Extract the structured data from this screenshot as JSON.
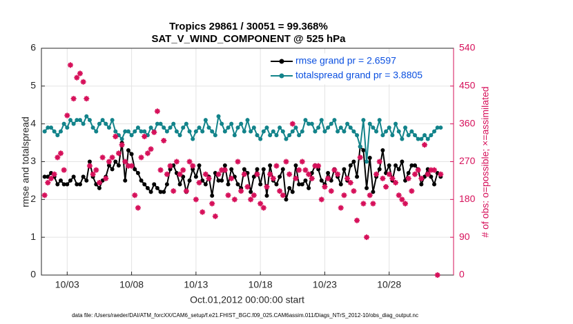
{
  "chart_data": {
    "type": "line",
    "title": "Tropics 29861 / 30051 = 99.368%",
    "subtitle": "SAT_V_WIND_COMPONENT @ 525 hPa",
    "x_label": "Oct.01,2012 00:00:00 start",
    "y_label": "rmse and totalspread",
    "y2_label": "# of obs: o=possible; ×=assimilated",
    "footnote": "data file: /Users/raeder/DAI/ATM_forcXX/CAM6_setup/f.e21.FHIST_BGC.f09_025.CAM6assim.011/Diags_NTrS_2012-10/obs_diag_output.nc",
    "xlim": [
      1,
      33
    ],
    "xticks": [
      {
        "value": 3,
        "label": "10/03"
      },
      {
        "value": 8,
        "label": "10/08"
      },
      {
        "value": 13,
        "label": "10/13"
      },
      {
        "value": 18,
        "label": "10/18"
      },
      {
        "value": 23,
        "label": "10/23"
      },
      {
        "value": 28,
        "label": "10/28"
      }
    ],
    "ylim": [
      0,
      6
    ],
    "yticks": [
      0,
      1,
      2,
      3,
      4,
      5,
      6
    ],
    "y2lim": [
      0,
      540
    ],
    "y2ticks": [
      0,
      90,
      180,
      270,
      360,
      450,
      540
    ],
    "grid": true,
    "legend": "upper right",
    "x": [
      1.25,
      1.5,
      1.75,
      2,
      2.25,
      2.5,
      2.75,
      3,
      3.25,
      3.5,
      3.75,
      4,
      4.25,
      4.5,
      4.75,
      5,
      5.25,
      5.5,
      5.75,
      6,
      6.25,
      6.5,
      6.75,
      7,
      7.25,
      7.5,
      7.75,
      8,
      8.25,
      8.5,
      8.75,
      9,
      9.25,
      9.5,
      9.75,
      10,
      10.25,
      10.5,
      10.75,
      11,
      11.25,
      11.5,
      11.75,
      12,
      12.25,
      12.5,
      12.75,
      13,
      13.25,
      13.5,
      13.75,
      14,
      14.25,
      14.5,
      14.75,
      15,
      15.25,
      15.5,
      15.75,
      16,
      16.25,
      16.5,
      16.75,
      17,
      17.25,
      17.5,
      17.75,
      18,
      18.25,
      18.5,
      18.75,
      19,
      19.25,
      19.5,
      19.75,
      20,
      20.25,
      20.5,
      20.75,
      21,
      21.25,
      21.5,
      21.75,
      22,
      22.25,
      22.5,
      22.75,
      23,
      23.25,
      23.5,
      23.75,
      24,
      24.25,
      24.5,
      24.75,
      25,
      25.25,
      25.5,
      25.75,
      26,
      26.25,
      26.5,
      26.75,
      27,
      27.25,
      27.5,
      27.75,
      28,
      28.25,
      28.5,
      28.75,
      29,
      29.25,
      29.5,
      29.75,
      30,
      30.25,
      30.5,
      30.75,
      31,
      31.25,
      31.5,
      31.75,
      32
    ],
    "series": [
      {
        "name": "rmse grand pr = 2.6597",
        "color": "#000000",
        "values": [
          2.6,
          2.6,
          2.7,
          2.6,
          2.4,
          2.5,
          2.4,
          2.4,
          2.5,
          2.6,
          2.4,
          2.4,
          2.6,
          2.5,
          3.0,
          2.6,
          2.4,
          2.3,
          2.5,
          2.6,
          2.9,
          2.8,
          3.0,
          2.9,
          3.5,
          2.5,
          3.3,
          3.2,
          2.8,
          2.7,
          2.5,
          2.4,
          2.3,
          2.2,
          2.4,
          2.3,
          2.2,
          2.2,
          2.4,
          2.8,
          2.9,
          2.7,
          2.4,
          2.6,
          2.2,
          2.5,
          2.8,
          2.6,
          2.9,
          2.5,
          2.4,
          2.6,
          2.1,
          2.7,
          2.5,
          2.5,
          2.9,
          2.4,
          2.8,
          2.6,
          2.4,
          2.3,
          2.8,
          2.7,
          2.2,
          2.6,
          2.8,
          2.4,
          2.8,
          2.1,
          2.9,
          2.5,
          2.4,
          2.6,
          2.8,
          2.0,
          2.3,
          2.2,
          2.9,
          2.4,
          2.4,
          2.5,
          2.3,
          2.7,
          2.9,
          2.8,
          2.5,
          2.4,
          2.7,
          2.5,
          2.8,
          2.6,
          2.4,
          2.8,
          2.5,
          2.9,
          3.0,
          2.6,
          3.4,
          3.3,
          2.3,
          3.1,
          2.2,
          2.6,
          2.8,
          3.3,
          2.7,
          2.9,
          2.5,
          2.9,
          2.8,
          3.0,
          2.5,
          2.7,
          2.9,
          2.9,
          2.8,
          2.4,
          2.6,
          2.8,
          2.6,
          2.4,
          2.7,
          2.6
        ]
      },
      {
        "name": "totalspread grand pr = 3.8805",
        "color": "#12838a",
        "values": [
          3.8,
          3.9,
          3.9,
          3.8,
          3.7,
          3.8,
          4.0,
          3.9,
          4.1,
          4.0,
          4.1,
          4.1,
          4.0,
          4.2,
          4.1,
          3.9,
          3.8,
          4.0,
          4.1,
          4.0,
          3.9,
          4.1,
          3.8,
          3.7,
          3.6,
          3.8,
          3.8,
          3.7,
          3.8,
          3.9,
          3.8,
          3.8,
          3.7,
          3.9,
          3.8,
          4.0,
          4.0,
          3.9,
          3.8,
          3.9,
          4.0,
          3.8,
          3.7,
          3.9,
          4.0,
          3.8,
          3.6,
          3.8,
          3.9,
          3.8,
          4.1,
          3.9,
          3.8,
          3.7,
          4.2,
          4.0,
          3.8,
          3.9,
          4.0,
          3.7,
          3.9,
          4.0,
          3.8,
          4.1,
          3.8,
          3.9,
          3.7,
          3.6,
          3.8,
          3.9,
          3.7,
          3.8,
          3.7,
          3.9,
          3.8,
          3.6,
          3.7,
          3.8,
          3.9,
          3.7,
          3.8,
          4.1,
          4.0,
          4.0,
          3.8,
          3.9,
          4.1,
          3.8,
          3.9,
          4.0,
          4.1,
          3.8,
          3.9,
          3.8,
          4.0,
          3.9,
          3.8,
          3.7,
          3.4,
          4.1,
          3.0,
          4.0,
          3.9,
          3.8,
          4.1,
          3.7,
          3.8,
          3.9,
          3.7,
          4.0,
          3.8,
          3.6,
          3.9,
          3.7,
          3.8,
          3.7,
          3.6,
          3.6,
          3.7,
          3.6,
          3.7,
          3.8,
          3.9,
          3.9
        ]
      },
      {
        "axis": "y2",
        "color": "#d6105a",
        "marker": "asterisk",
        "values": [
          190,
          220,
          230,
          240,
          280,
          290,
          250,
          380,
          500,
          420,
          470,
          480,
          460,
          420,
          260,
          240,
          250,
          220,
          280,
          230,
          270,
          280,
          330,
          290,
          310,
          270,
          260,
          260,
          190,
          160,
          280,
          330,
          290,
          300,
          340,
          390,
          250,
          320,
          240,
          260,
          200,
          270,
          240,
          250,
          200,
          270,
          260,
          180,
          220,
          150,
          240,
          230,
          170,
          140,
          240,
          250,
          250,
          190,
          230,
          180,
          270,
          200,
          240,
          210,
          180,
          190,
          240,
          170,
          160,
          210,
          240,
          230,
          260,
          200,
          190,
          270,
          240,
          360,
          230,
          250,
          270,
          250,
          240,
          230,
          260,
          260,
          180,
          210,
          230,
          200,
          250,
          240,
          160,
          190,
          230,
          220,
          200,
          130,
          280,
          170,
          90,
          190,
          170,
          240,
          270,
          230,
          210,
          240,
          230,
          220,
          190,
          180,
          170,
          230,
          200,
          240,
          250,
          230,
          310,
          240,
          250,
          250,
          0,
          240
        ]
      }
    ]
  }
}
